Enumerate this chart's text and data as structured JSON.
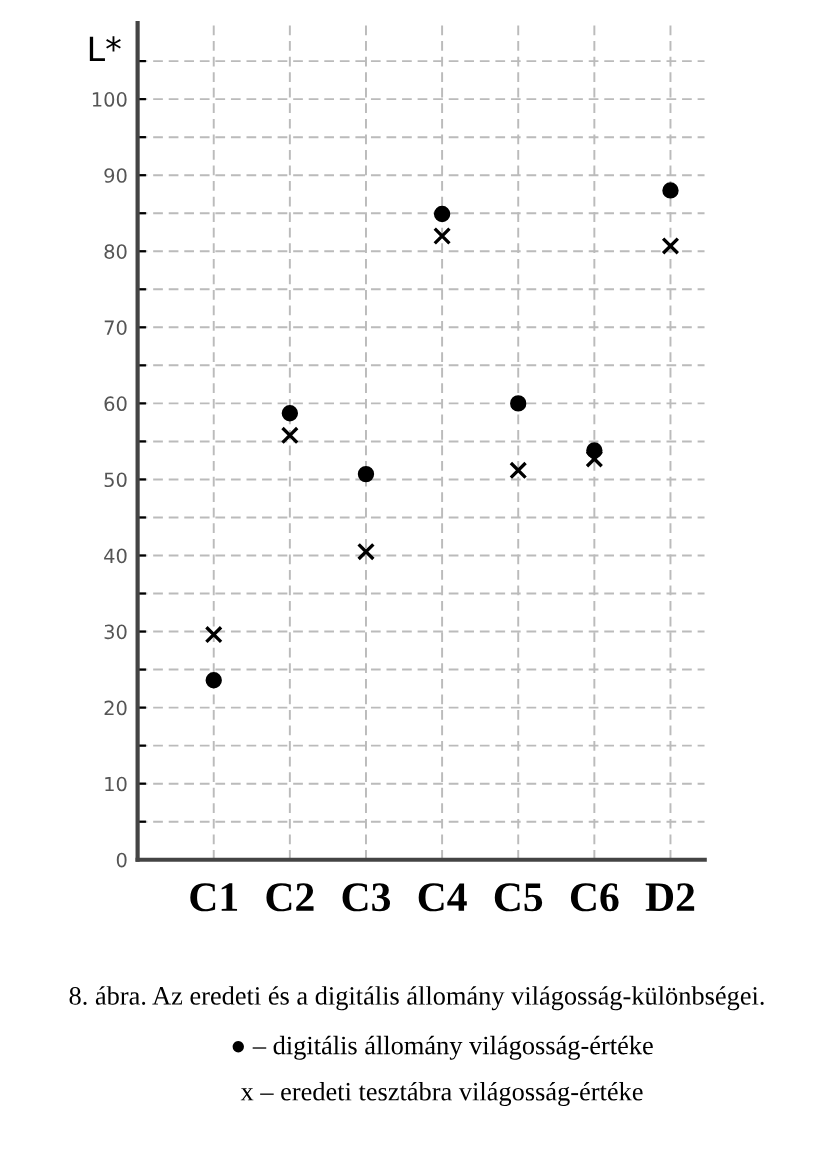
{
  "chart_data": {
    "type": "scatter",
    "ylabel": "L*",
    "categories": [
      "C1",
      "C2",
      "C3",
      "C4",
      "C5",
      "C6",
      "D2"
    ],
    "series": [
      {
        "color": "#000000",
        "marker": "circle",
        "values": [
          23.6,
          58.7,
          50.7,
          84.9,
          60,
          53.8,
          88
        ]
      },
      {
        "color": "#000000",
        "marker": "cross",
        "values": [
          29.6,
          55.8,
          40.5,
          82,
          51.2,
          52.7,
          80.7
        ]
      }
    ],
    "ylim": [
      0,
      110
    ],
    "yticks": [
      0,
      {
        "value": 5,
        "label": null
      },
      10,
      {
        "value": 15,
        "label": null
      },
      20,
      {
        "value": 25,
        "label": null
      },
      30,
      {
        "value": 35,
        "label": null
      },
      40,
      {
        "value": 45,
        "label": null
      },
      50,
      {
        "value": 55,
        "label": null
      },
      60,
      {
        "value": 65,
        "label": null
      },
      70,
      {
        "value": 75,
        "label": null
      },
      80,
      {
        "value": 85,
        "label": null
      },
      90,
      {
        "value": 95,
        "label": null
      },
      100,
      {
        "value": 105,
        "label": null
      }
    ],
    "grid": true,
    "legend": false,
    "annotations": [
      "8. ábra. Az eredeti és a digitális állomány világosság-különbségei.",
      "● – digitális állomány világosság-értéke",
      "x – eredeti tesztábra világosság-értéke"
    ]
  }
}
